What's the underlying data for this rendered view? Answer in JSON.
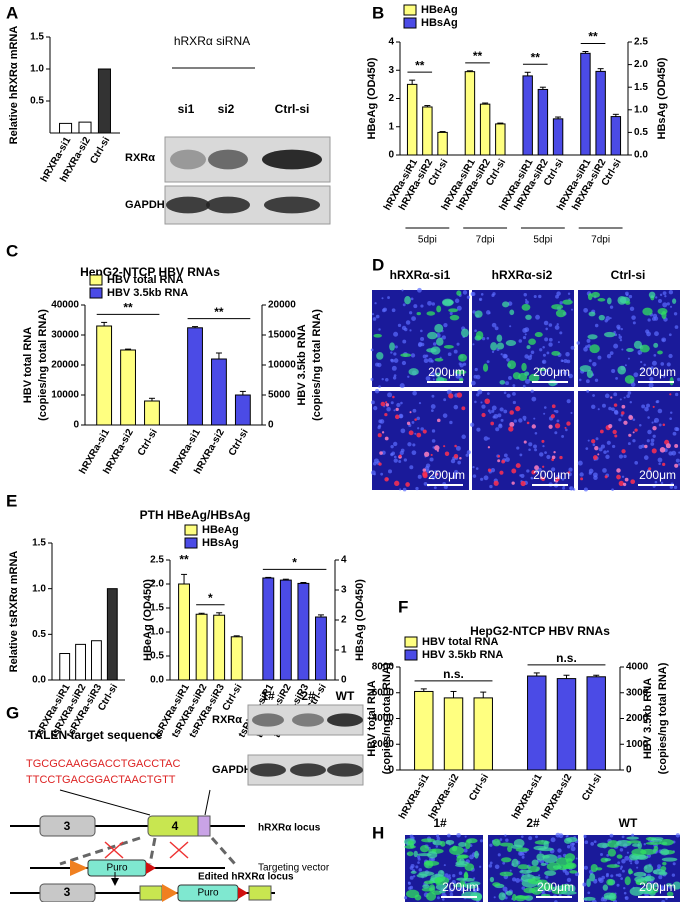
{
  "panel_letters": [
    "A",
    "B",
    "C",
    "D",
    "E",
    "F",
    "G",
    "H"
  ],
  "chart_data": [
    {
      "type": "bar",
      "ylabel": "Relative hRXRα mRNA",
      "categories": [
        "hRXRa-si1",
        "hRXRa-si2",
        "Ctrl-si"
      ],
      "values": [
        0.15,
        0.17,
        1.0
      ],
      "colors": [
        "#ffffff",
        "#ffffff",
        "#333333"
      ],
      "ylim": [
        0,
        1.5
      ],
      "yticks": [
        {
          "value": 0.5,
          "label": "0.5"
        },
        {
          "value": 1,
          "label": "1.0"
        },
        1.5
      ]
    },
    {
      "type": "bar",
      "ylabel": [
        "HBeAg (OD450)"
      ],
      "y2label": [
        "HBsAg (OD450)"
      ],
      "categories": [
        "hRXRa-siR1",
        "hRXRa-siR2",
        "Ctrl-si",
        "hRXRa-siR1",
        "hRXRa-siR2",
        "Ctrl-si",
        "hRXRa-siR1",
        "hRXRa-siR2",
        "Ctrl-si",
        "hRXRa-siR1",
        "hRXRa-siR2",
        "Ctrl-si"
      ],
      "series": [
        {
          "name": "HBeAg",
          "color": "#ffff80",
          "values": [
            2.5,
            1.7,
            0.8,
            2.95,
            1.8,
            1.1,
            null,
            null,
            null,
            null,
            null,
            null
          ],
          "errors": [
            0.15,
            0.05,
            0.03,
            0.03,
            0.04,
            0.03,
            null,
            null,
            null,
            null,
            null,
            null
          ]
        },
        {
          "name": "HBsAg",
          "color": "#4b4be6",
          "axis": "y2",
          "values": [
            null,
            null,
            null,
            null,
            null,
            null,
            1.75,
            1.45,
            0.8,
            2.25,
            1.85,
            0.85
          ],
          "errors": [
            null,
            null,
            null,
            null,
            null,
            null,
            0.08,
            0.05,
            0.04,
            0.04,
            0.06,
            0.05
          ]
        }
      ],
      "ylim": [
        0,
        4
      ],
      "yticks": [
        0,
        1,
        2,
        3,
        4
      ],
      "y2lim": [
        0,
        2.5
      ],
      "y2ticks": [
        {
          "value": 0,
          "label": "0.0"
        },
        0.5,
        {
          "value": 1,
          "label": "1.0"
        },
        1.5,
        {
          "value": 2,
          "label": "2.0"
        },
        2.5
      ],
      "group_labels": [
        "5dpi",
        "7dpi",
        "5dpi",
        "7dpi"
      ],
      "annotations": [
        "**",
        "**",
        "**",
        "**"
      ]
    },
    {
      "type": "bar",
      "title": "HepG2-NTCP HBV RNAs",
      "ylabel": [
        "HBV total RNA",
        "(copies/ng total RNA)"
      ],
      "y2label": [
        "HBV 3.5kb RNA",
        "(copies/ng total RNA)"
      ],
      "categories": [
        "hRXRa-si1",
        "hRXRa-si2",
        "Ctrl-si",
        "hRXRa-si1",
        "hRXRa-si2",
        "Ctrl-si"
      ],
      "series": [
        {
          "name": "HBV total RNA",
          "color": "#ffff80",
          "values": [
            33000,
            25000,
            8000,
            null,
            null,
            null
          ],
          "errors": [
            1200,
            300,
            900,
            null,
            null,
            null
          ]
        },
        {
          "name": "HBV 3.5kb RNA",
          "color": "#4b4be6",
          "axis": "y2",
          "values": [
            null,
            null,
            null,
            16200,
            11000,
            5000
          ],
          "errors": [
            null,
            null,
            null,
            200,
            1000,
            600
          ]
        }
      ],
      "ylim": [
        0,
        40000
      ],
      "yticks": [
        0,
        10000,
        20000,
        30000,
        40000
      ],
      "y2lim": [
        0,
        20000
      ],
      "y2ticks": [
        0,
        5000,
        10000,
        15000,
        20000
      ],
      "annotations": [
        "**",
        "**"
      ]
    },
    {
      "type": "bar",
      "ylabel": "Relative tsRXRα mRNA",
      "categories": [
        "tsRXRa-siR1",
        "tsRXRa-siR2",
        "tsRXRa-siR3",
        "Ctrl-si"
      ],
      "values": [
        0.29,
        0.39,
        0.43,
        1.0
      ],
      "colors": [
        "#ffffff",
        "#ffffff",
        "#ffffff",
        "#333333"
      ],
      "ylim": [
        0,
        1.5
      ],
      "yticks": [
        {
          "value": 0,
          "label": "0.0"
        },
        0.5,
        {
          "value": 1,
          "label": "1.0"
        },
        1.5
      ]
    },
    {
      "type": "bar",
      "title": "PTH HBeAg/HBsAg",
      "ylabel": [
        "HBeAg (OD450)"
      ],
      "y2label": [
        "HBsAg (OD450)"
      ],
      "categories": [
        "tsRXRa-siR1",
        "tsRXRa-siR2",
        "tsRXRa-siR3",
        "Ctrl-si",
        "tsRXRa-siR1",
        "tsRXRa-siR2",
        "tsRXRa-siR3",
        "Ctrl-si"
      ],
      "series": [
        {
          "name": "HBeAg",
          "color": "#ffff80",
          "values": [
            2.0,
            1.37,
            1.35,
            0.9,
            null,
            null,
            null,
            null
          ],
          "errors": [
            0.2,
            0.02,
            0.05,
            0.02,
            null,
            null,
            null,
            null
          ]
        },
        {
          "name": "HBsAg",
          "color": "#4b4be6",
          "axis": "y2",
          "values": [
            null,
            null,
            null,
            null,
            3.4,
            3.33,
            3.22,
            2.1
          ],
          "errors": [
            null,
            null,
            null,
            null,
            0.02,
            0.03,
            0.03,
            0.07
          ]
        }
      ],
      "ylim": [
        0,
        2.5
      ],
      "yticks": [
        {
          "value": 0,
          "label": "0.0"
        },
        0.5,
        {
          "value": 1,
          "label": "1.0"
        },
        1.5,
        {
          "value": 2,
          "label": "2.0"
        },
        2.5
      ],
      "y2lim": [
        0,
        4
      ],
      "y2ticks": [
        0,
        1,
        2,
        3,
        4
      ],
      "annotations": [
        "**",
        "*",
        "*"
      ]
    },
    {
      "type": "bar",
      "title": "HepG2-NTCP HBV RNAs",
      "ylabel": [
        "HBV total RNA",
        "(copies/ng total RNA)"
      ],
      "y2label": [
        "HBV 3.5kb RNA",
        "(copies/ng total RNA)"
      ],
      "categories": [
        "hRXRa-si1",
        "hRXRa-si2",
        "Ctrl-si",
        "hRXRa-si1",
        "hRXRa-si2",
        "Ctrl-si"
      ],
      "series": [
        {
          "name": "HBV total RNA",
          "color": "#ffff80",
          "values": [
            6100,
            5600,
            5600,
            null,
            null,
            null
          ],
          "errors": [
            200,
            500,
            450,
            null,
            null,
            null
          ]
        },
        {
          "name": "HBV 3.5kb RNA",
          "color": "#4b4be6",
          "axis": "y2",
          "values": [
            null,
            null,
            null,
            3650,
            3550,
            3620
          ],
          "errors": [
            null,
            null,
            null,
            120,
            130,
            60
          ]
        }
      ],
      "ylim": [
        0,
        8000
      ],
      "yticks": [
        0,
        2000,
        4000,
        6000,
        8000
      ],
      "y2lim": [
        0,
        4000
      ],
      "y2ticks": [
        0,
        1000,
        2000,
        3000,
        4000
      ],
      "annotations": [
        "n.s.",
        "n.s."
      ]
    }
  ],
  "blot_a": {
    "header": "hRXRα siRNA",
    "lanes": [
      "si1",
      "si2",
      "Ctrl-si"
    ],
    "rows": [
      "RXRα",
      "GAPDH"
    ]
  },
  "microscopy_d": {
    "columns": [
      "hRXRα-si1",
      "hRXRα-si2",
      "Ctrl-si"
    ],
    "scale_bars": [
      "200μm",
      "200μm",
      "200μm",
      "200μm",
      "200μm",
      "200μm"
    ]
  },
  "talen": {
    "heading": "TALEN target sequence",
    "sequence": [
      "TGCGCAAGGACCTGACCTAC",
      "TTCCTGACGGACTAACTGTT"
    ],
    "exons": [
      "3",
      "4",
      "3"
    ],
    "puro": [
      "Puro",
      "Puro"
    ],
    "labels": [
      "hRXRα locus",
      "Targeting vector",
      "Edited hRXRα locus"
    ]
  },
  "blot_g": {
    "lanes": [
      "1#",
      "2#",
      "WT"
    ],
    "rows": [
      "RXRα",
      "GAPDH"
    ]
  },
  "microscopy_h": {
    "columns": [
      "1#",
      "2#",
      "WT"
    ],
    "scale_bars": [
      "200μm",
      "200μm",
      "200μm"
    ]
  }
}
